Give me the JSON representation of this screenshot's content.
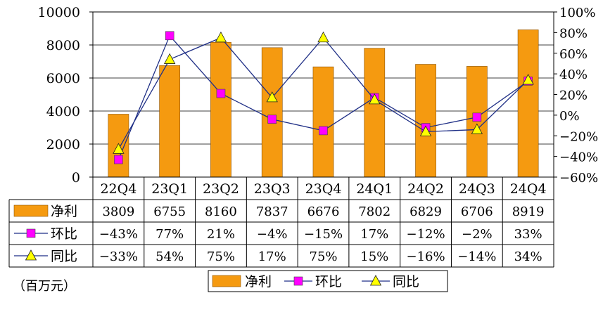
{
  "unit_note": "（百万元）",
  "colors": {
    "bar": "#f59a10",
    "bar_stroke": "#8a5000",
    "hb_line": "#1f2f86",
    "hb_marker": "#ff00ff",
    "tb_line": "#1f2f86",
    "tb_marker": "#ffff00"
  },
  "chart_data": {
    "type": "bar",
    "categories": [
      "22Q4",
      "23Q1",
      "23Q2",
      "23Q3",
      "23Q4",
      "24Q1",
      "24Q2",
      "24Q3",
      "24Q4"
    ],
    "ylim": [
      0,
      10000
    ],
    "yticks": [
      "0",
      "2000",
      "4000",
      "6000",
      "8000",
      "10000"
    ],
    "y2lim": [
      -60,
      100
    ],
    "y2ticks": [
      "-60%",
      "-40%",
      "-20%",
      "0%",
      "20%",
      "40%",
      "60%",
      "80%",
      "100%"
    ],
    "grid": "horizontal",
    "series": [
      {
        "name": "净利",
        "type": "bar",
        "axis": "left",
        "values": [
          3809,
          6755,
          8160,
          7837,
          6676,
          7802,
          6829,
          6706,
          8919
        ],
        "labels": [
          "3809",
          "6755",
          "8160",
          "7837",
          "6676",
          "7802",
          "6829",
          "6706",
          "8919"
        ]
      },
      {
        "name": "环比",
        "type": "line",
        "axis": "right",
        "marker": "square",
        "values": [
          -43,
          77,
          21,
          -4,
          -15,
          17,
          -12,
          -2,
          33
        ],
        "labels": [
          "−43%",
          "77%",
          "21%",
          "−4%",
          "−15%",
          "17%",
          "−12%",
          "−2%",
          "33%"
        ]
      },
      {
        "name": "同比",
        "type": "line",
        "axis": "right",
        "marker": "triangle",
        "values": [
          -33,
          54,
          75,
          17,
          75,
          15,
          -16,
          -14,
          34
        ],
        "labels": [
          "−33%",
          "54%",
          "75%",
          "17%",
          "75%",
          "15%",
          "−16%",
          "−14%",
          "34%"
        ]
      }
    ],
    "legend": {
      "position": "bottom",
      "items": [
        "净利",
        "环比",
        "同比"
      ]
    }
  }
}
